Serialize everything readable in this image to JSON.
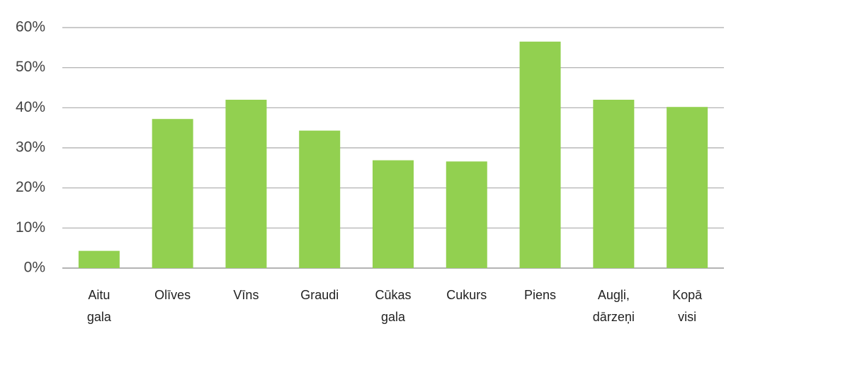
{
  "chart_data": {
    "type": "bar",
    "categories": [
      "Aitu gala",
      "Olīves",
      "Vīns",
      "Graudi",
      "Cūkas gala",
      "Cukurs",
      "Piens",
      "Augļi, dārzeņi",
      "Kopā visi"
    ],
    "values": [
      4.3,
      37.2,
      42,
      34.3,
      26.9,
      26.6,
      56.5,
      42,
      40.2
    ],
    "color": "#92d050",
    "ylim": [
      0,
      60
    ],
    "yticks": [
      {
        "value": 0,
        "label": "0%"
      },
      {
        "value": 10,
        "label": "10%"
      },
      {
        "value": 20,
        "label": "20%"
      },
      {
        "value": 30,
        "label": "30%"
      },
      {
        "value": 40,
        "label": "40%"
      },
      {
        "value": 50,
        "label": "50%"
      },
      {
        "value": 60,
        "label": "60%"
      }
    ],
    "grid": true
  }
}
